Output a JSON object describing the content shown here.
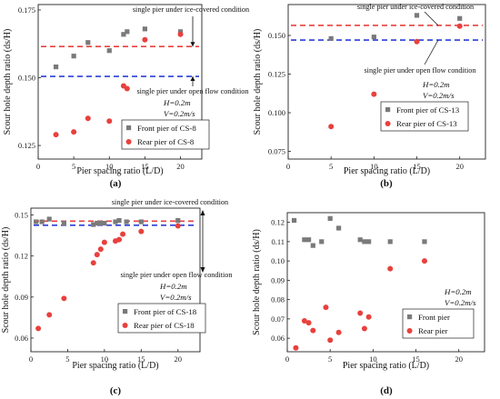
{
  "panels": [
    {
      "label": "(a)",
      "xlabel": "Pier spacing ratio (L/D)",
      "ylabel": "Scour hole depth ratio (ds/H)",
      "annot_ice": "single pier under ice-covered condition",
      "annot_open": "single pier under open flow condition",
      "cond_h": "H=0.2m",
      "cond_v": "V=0.2m/s",
      "legend": [
        "Front pier of CS-8",
        "Rear pier of CS-8"
      ],
      "xticks": [
        "0",
        "5",
        "10",
        "15",
        "20"
      ],
      "yticks": [
        "0.125",
        "0.150",
        "0.175"
      ]
    },
    {
      "label": "(b)",
      "xlabel": "Pier spacing ratio (L/D)",
      "ylabel": "Scour hole depth ratio (ds/H)",
      "annot_ice": "single pier under ice-covered condition",
      "annot_open": "single pier under open flow condition",
      "cond_h": "H=0.2m",
      "cond_v": "V=0.2m/s",
      "legend": [
        "Front pier of CS-13",
        "Rear pier of CS-13"
      ],
      "xticks": [
        "0",
        "5",
        "10",
        "15",
        "20"
      ],
      "yticks": [
        "0.075",
        "0.100",
        "0.125",
        "0.150"
      ]
    },
    {
      "label": "(c)",
      "xlabel": "Pier spacing ratio (L/D)",
      "ylabel": "Scour hole depth ratio (ds/H)",
      "annot_ice": "single pier under ice-covered condition",
      "annot_open": "single pier under open flow condition",
      "cond_h": "H=0.2m",
      "cond_v": "V=0.2m/s",
      "legend": [
        "Front pier of CS-18",
        "Rear pier of CS-18"
      ],
      "xticks": [
        "0",
        "5",
        "10",
        "15",
        "20"
      ],
      "yticks": [
        "0.06",
        "0.09",
        "0.12",
        "0.15"
      ]
    },
    {
      "label": "(d)",
      "xlabel": "Pier spacing ratio (L/D)",
      "ylabel": "Scour hole depth ratio (ds/H)",
      "cond_h": "H=0.2m",
      "cond_v": "V=0.2m/s",
      "legend": [
        "Front pier",
        "Rear pier"
      ],
      "xticks": [
        "0",
        "5",
        "10",
        "15",
        "20"
      ],
      "yticks": [
        "0.06",
        "0.07",
        "0.08",
        "0.09",
        "0.10",
        "0.11",
        "0.12"
      ]
    }
  ],
  "colors": {
    "front": "#7a7a7a",
    "rear": "#e8413d",
    "ice_line": "#e8413d",
    "open_line": "#2a3fd6"
  },
  "chart_data": [
    {
      "type": "scatter",
      "title": "(a)",
      "xlabel": "Pier spacing ratio (L/D)",
      "ylabel": "Scour hole depth ratio (ds/H)",
      "xlim": [
        0,
        23
      ],
      "ylim": [
        0.12,
        0.177
      ],
      "reference_lines": {
        "ice_covered": 0.1615,
        "open_flow": 0.1505
      },
      "series": [
        {
          "name": "Front pier of CS-8",
          "marker": "square",
          "x": [
            2.5,
            5,
            7,
            10,
            12,
            12.5,
            15,
            20
          ],
          "y": [
            0.154,
            0.158,
            0.163,
            0.16,
            0.166,
            0.167,
            0.168,
            0.167
          ]
        },
        {
          "name": "Rear pier of CS-8",
          "marker": "circle",
          "x": [
            2.5,
            5,
            7,
            10,
            12,
            12.5,
            15,
            20
          ],
          "y": [
            0.129,
            0.13,
            0.135,
            0.134,
            0.147,
            0.146,
            0.164,
            0.166
          ]
        }
      ]
    },
    {
      "type": "scatter",
      "title": "(b)",
      "xlabel": "Pier spacing ratio (L/D)",
      "ylabel": "Scour hole depth ratio (ds/H)",
      "xlim": [
        0,
        23
      ],
      "ylim": [
        0.07,
        0.17
      ],
      "reference_lines": {
        "ice_covered": 0.1565,
        "open_flow": 0.147
      },
      "series": [
        {
          "name": "Front pier of CS-13",
          "marker": "square",
          "x": [
            5,
            10,
            15,
            20
          ],
          "y": [
            0.148,
            0.149,
            0.163,
            0.161
          ]
        },
        {
          "name": "Rear pier of CS-13",
          "marker": "circle",
          "x": [
            5,
            10,
            15,
            20
          ],
          "y": [
            0.091,
            0.112,
            0.146,
            0.156
          ]
        }
      ]
    },
    {
      "type": "scatter",
      "title": "(c)",
      "xlabel": "Pier spacing ratio (L/D)",
      "ylabel": "Scour hole depth ratio (ds/H)",
      "xlim": [
        0,
        23
      ],
      "ylim": [
        0.05,
        0.155
      ],
      "reference_lines": {
        "ice_covered": 0.1455,
        "open_flow": 0.1425
      },
      "series": [
        {
          "name": "Front pier of CS-18",
          "marker": "square",
          "x": [
            0.7,
            1.5,
            2.5,
            4.5,
            8.5,
            9,
            9.5,
            10,
            11.5,
            12,
            13,
            15,
            20
          ],
          "y": [
            0.145,
            0.145,
            0.147,
            0.144,
            0.143,
            0.144,
            0.144,
            0.144,
            0.145,
            0.146,
            0.145,
            0.145,
            0.146
          ]
        },
        {
          "name": "Rear pier of CS-18",
          "marker": "circle",
          "x": [
            1,
            2.5,
            4.5,
            8.5,
            9,
            9.5,
            10,
            11.5,
            12,
            12.5,
            15,
            20
          ],
          "y": [
            0.067,
            0.077,
            0.089,
            0.115,
            0.121,
            0.125,
            0.13,
            0.131,
            0.132,
            0.136,
            0.138,
            0.142
          ]
        }
      ]
    },
    {
      "type": "scatter",
      "title": "(d)",
      "xlabel": "Pier spacing ratio (L/D)",
      "ylabel": "Scour hole depth ratio (ds/H)",
      "xlim": [
        0,
        23
      ],
      "ylim": [
        0.053,
        0.125
      ],
      "series": [
        {
          "name": "Front pier",
          "marker": "square",
          "x": [
            0.8,
            2,
            2.5,
            3,
            4,
            5,
            6,
            8.5,
            9,
            9.5,
            12,
            16
          ],
          "y": [
            0.121,
            0.111,
            0.111,
            0.108,
            0.11,
            0.122,
            0.117,
            0.111,
            0.11,
            0.11,
            0.11,
            0.11
          ]
        },
        {
          "name": "Rear pier",
          "marker": "circle",
          "x": [
            1,
            2,
            2.5,
            3,
            4.5,
            5,
            6,
            8.5,
            9,
            9.5,
            12,
            16
          ],
          "y": [
            0.055,
            0.069,
            0.068,
            0.064,
            0.076,
            0.059,
            0.063,
            0.073,
            0.065,
            0.071,
            0.096,
            0.1
          ]
        }
      ]
    }
  ]
}
